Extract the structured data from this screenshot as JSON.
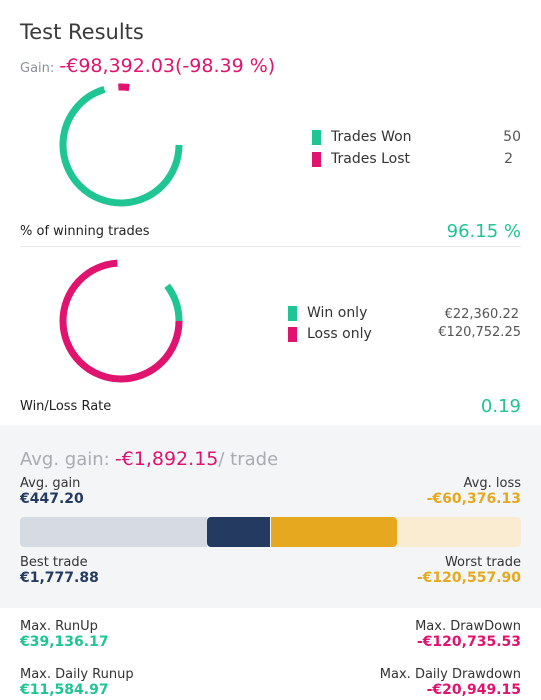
{
  "header": {
    "title": "Test Results",
    "gain_label": "Gain:",
    "gain_value": "-€98,392.03(-98.39 %)"
  },
  "trades_chart": {
    "type": "donut",
    "won": 50,
    "lost": 2,
    "colors": {
      "won": "#1fc592",
      "lost": "#e0136f"
    }
  },
  "trades_legend": [
    {
      "label": "Trades Won",
      "value": "50",
      "color": "#1fc592"
    },
    {
      "label": "Trades Lost",
      "value": "2",
      "color": "#e0136f"
    }
  ],
  "winning_pct": {
    "label": "% of winning trades",
    "value": "96.15 %"
  },
  "winloss_chart": {
    "type": "donut",
    "win": 22360.22,
    "loss": 120752.25,
    "colors": {
      "win": "#1fc592",
      "loss": "#e0136f"
    }
  },
  "winloss_legend": [
    {
      "label": "Win only",
      "value": "€22,360.22",
      "color": "#1fc592"
    },
    {
      "label": "Loss only",
      "value": "€120,752.25",
      "color": "#e0136f"
    }
  ],
  "winloss_rate": {
    "label": "Win/Loss Rate",
    "value": "0.19"
  },
  "avg": {
    "prefix": "Avg. gain:",
    "value": "-€1,892.15",
    "suffix": "/ trade",
    "avg_gain_label": "Avg. gain",
    "avg_gain_value": "€447.20",
    "avg_loss_label": "Avg. loss",
    "avg_loss_value": "-€60,376.13",
    "best_label": "Best trade",
    "best_value": "€1,777.88",
    "worst_label": "Worst trade",
    "worst_value": "-€120,557.90"
  },
  "range_bar": {
    "colors": {
      "track_left": "#d6dae2",
      "avg_gain": "#253a60",
      "avg_loss": "#e5a81f",
      "track_right": "#faecd0"
    }
  },
  "extremes": {
    "max_runup_label": "Max. RunUp",
    "max_runup_value": "€39,136.17",
    "max_drawdown_label": "Max. DrawDown",
    "max_drawdown_value": "-€120,735.53",
    "max_daily_runup_label": "Max. Daily Runup",
    "max_daily_runup_value": "€11,584.97",
    "max_daily_drawdown_label": "Max. Daily Drawdown",
    "max_daily_drawdown_value": "-€20,949.15"
  }
}
